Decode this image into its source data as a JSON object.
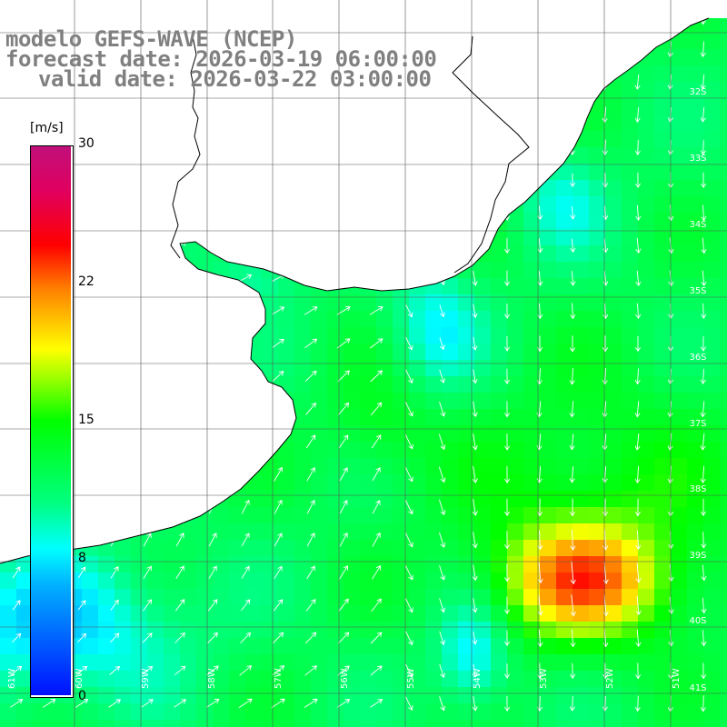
{
  "header": {
    "model": "modelo GEFS-WAVE (NCEP)",
    "forecast": "forecast date: 2026-03-19 06:00:00",
    "valid": "valid date: 2026-03-22 03:00:00"
  },
  "colorbar": {
    "unit": "[m/s]",
    "ticks": [
      "30",
      "22",
      "15",
      "8",
      "0"
    ],
    "min": 0,
    "max": 30,
    "colors": [
      "#0010ff",
      "#0060ff",
      "#00b0ff",
      "#00ffff",
      "#00ff80",
      "#00ff00",
      "#a0ff00",
      "#ffff00",
      "#ff8000",
      "#ff0000",
      "#c0107a"
    ]
  },
  "map": {
    "lat_labels": [
      "32S",
      "33S",
      "34S",
      "35S",
      "36S",
      "37S",
      "38S",
      "39S",
      "40S",
      "41S"
    ],
    "lon_labels": [
      "61W",
      "60W",
      "59W",
      "58W",
      "57W",
      "56W",
      "55W",
      "54W",
      "53W",
      "52W",
      "51W"
    ],
    "hotspot_value": 22,
    "wind_direction": "mostly from the north, veering to south-west flow near the coast"
  }
}
